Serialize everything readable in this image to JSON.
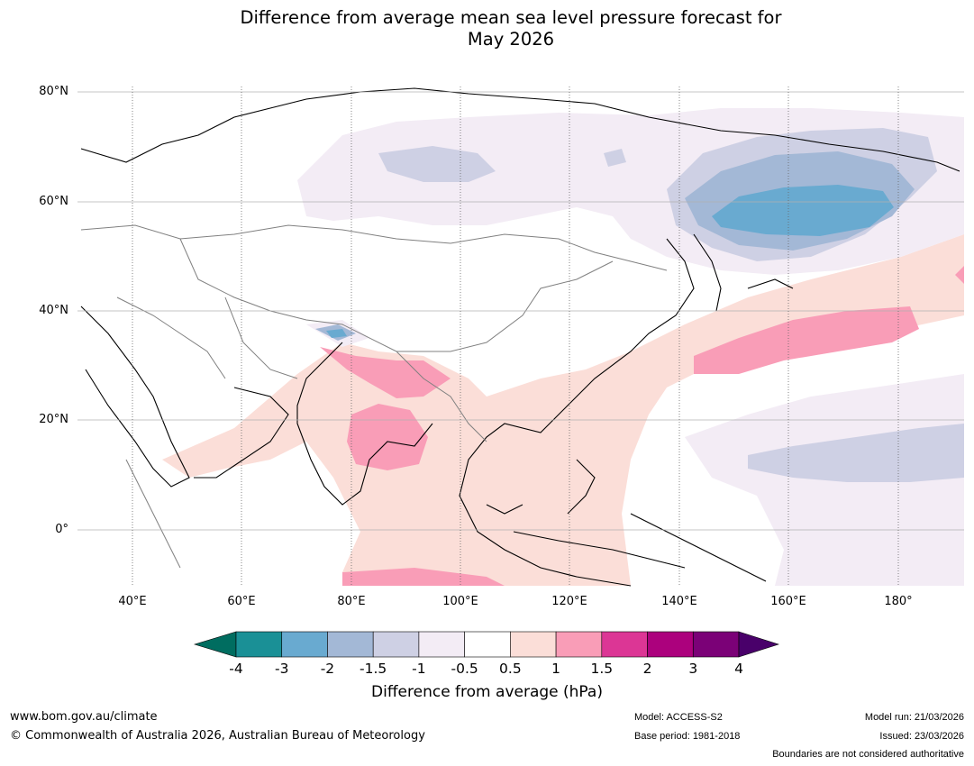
{
  "title_line1": "Difference from average mean sea level pressure forecast for",
  "title_line2": "May 2026",
  "map": {
    "lat_labels": [
      "80°N",
      "60°N",
      "40°N",
      "20°N",
      "0°"
    ],
    "lon_labels": [
      "40°E",
      "60°E",
      "80°E",
      "100°E",
      "120°E",
      "140°E",
      "160°E",
      "180°"
    ],
    "lon_range": [
      30,
      192
    ],
    "lat_range": [
      -10,
      80
    ]
  },
  "colorbar": {
    "title": "Difference from average (hPa)",
    "ticks": [
      "-4",
      "-3",
      "-2",
      "-1.5",
      "-1",
      "-0.5",
      "0.5",
      "1",
      "1.5",
      "2",
      "3",
      "4"
    ],
    "colors": [
      "#1a9096",
      "#69aad0",
      "#a3b8d6",
      "#ced0e4",
      "#f3ecf5",
      "#ffffff",
      "#fbded8",
      "#f99db7",
      "#dc3695",
      "#ac017d",
      "#7b0177"
    ],
    "under_color": "#006d60",
    "over_color": "#49006a"
  },
  "footer": {
    "website": "www.bom.gov.au/climate",
    "copyright": "© Commonwealth of Australia 2026, Australian Bureau of Meteorology",
    "model": "Model: ACCESS-S2",
    "base_period": "Base period: 1981-2018",
    "model_run": "Model run: 21/03/2026",
    "issued": "Issued: 23/03/2026",
    "disclaimer": "Boundaries are not considered authoritative"
  }
}
